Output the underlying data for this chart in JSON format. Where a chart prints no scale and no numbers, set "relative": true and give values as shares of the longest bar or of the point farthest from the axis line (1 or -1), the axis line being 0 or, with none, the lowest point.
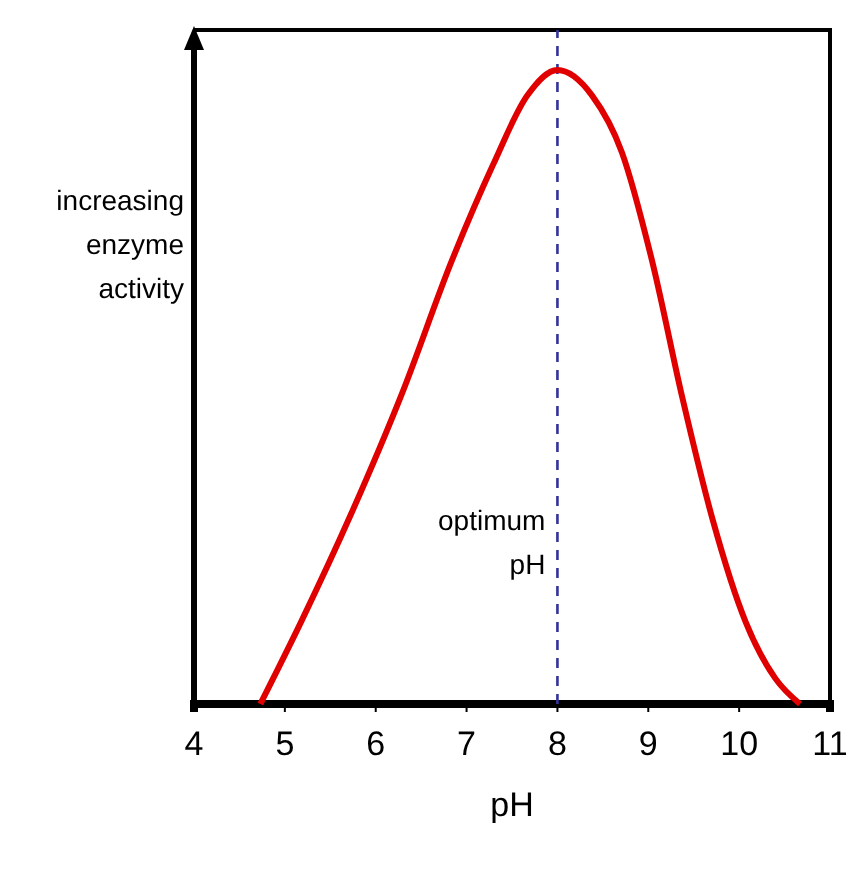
{
  "chart_data": {
    "type": "line",
    "relative": true,
    "xlabel": "pH",
    "ylabel": "increasing enzyme activity",
    "xlim": [
      4,
      11
    ],
    "xticks": [
      4,
      5,
      6,
      7,
      8,
      9,
      10,
      11
    ],
    "series": [
      {
        "color": "#e00000",
        "x": [
          4.73,
          5.18,
          5.73,
          6.29,
          6.84,
          7.29,
          7.67,
          8.0,
          8.38,
          8.71,
          9.04,
          9.38,
          9.71,
          10.07,
          10.4,
          10.67
        ],
        "values": [
          0,
          0.13,
          0.3,
          0.49,
          0.7,
          0.85,
          0.96,
          1,
          0.96,
          0.87,
          0.7,
          0.48,
          0.29,
          0.13,
          0.04,
          0
        ]
      }
    ],
    "ref_lines": [
      {
        "axis": "x",
        "value": 8,
        "label": "optimum pH",
        "color": "#333399",
        "line_style": "dashed"
      }
    ],
    "marker": "none",
    "line_style": "solid"
  }
}
